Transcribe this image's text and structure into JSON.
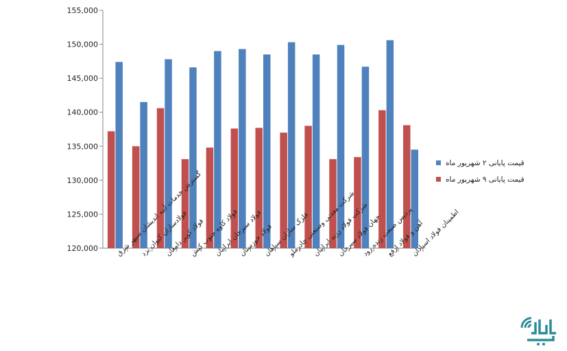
{
  "chart_data": {
    "type": "bar",
    "title": "",
    "xlabel": "",
    "ylabel": "",
    "ylim": [
      120000,
      155000
    ],
    "ytick_step": 5000,
    "ytick_labels": [
      "120,000",
      "125,000",
      "130,000",
      "135,000",
      "140,000",
      "145,000",
      "150,000",
      "155,000"
    ],
    "grid": false,
    "legend_position": "right",
    "categories": [
      "گسترش خدمات آتیه اندیشان سپهر شرق",
      "فولادسازان کیوان یزد",
      "فولاد کویر دامغان",
      "فولاد کاوه جنوب کیش",
      "فولاد سیرجان ایرانیان",
      "فولاد خوزستان",
      "فلزک سازان سپاهان",
      "شرکت معدنی وصنعتی چادرملو",
      "شرکت فولاد زرند ایرانیان",
      "جهان فولاد سیرجان",
      "پردیس صنعت زنده رود",
      "آهن و فولاد ارفع",
      "اطمینان فولاد اسپادان"
    ],
    "series": [
      {
        "name": "قیمت پایانی ۲ شهریور ماه",
        "color": "#4f81bd",
        "values": [
          147400,
          141500,
          147800,
          146600,
          149000,
          149300,
          148500,
          150300,
          148500,
          149900,
          146700,
          150600,
          134500
        ]
      },
      {
        "name": "قیمت پایانی ۹ شهریور ماه",
        "color": "#c0504d",
        "values": [
          137200,
          135000,
          140600,
          133100,
          134800,
          137600,
          137700,
          137000,
          138000,
          133100,
          133400,
          140300,
          138100
        ]
      }
    ]
  },
  "logo": {
    "text": "کالا خبر",
    "color": "#2a8c9a"
  }
}
